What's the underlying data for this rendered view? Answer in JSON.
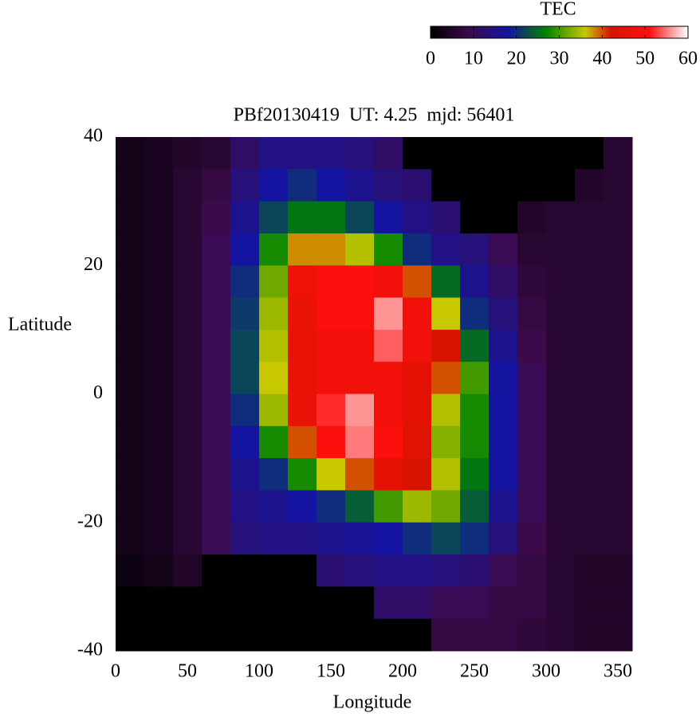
{
  "chart_data": {
    "type": "heatmap",
    "title": "PBf20130419  UT: 4.25  mjd: 56401",
    "xlabel": "Longitude",
    "ylabel": "Latitude",
    "colorbar_label": "TEC",
    "x": [
      10,
      30,
      50,
      70,
      90,
      110,
      130,
      150,
      170,
      190,
      210,
      230,
      250,
      270,
      290,
      310,
      330,
      350
    ],
    "y": [
      37.5,
      32.5,
      27.5,
      22.5,
      17.5,
      12.5,
      7.5,
      2.5,
      -2.5,
      -7.5,
      -12.5,
      -17.5,
      -22.5,
      -27.5,
      -32.5,
      -37.5
    ],
    "z": [
      [
        3,
        4,
        5,
        6,
        12,
        15,
        15,
        15,
        14,
        12,
        0,
        0,
        0,
        0,
        0,
        0,
        0,
        6
      ],
      [
        3,
        4,
        6,
        8,
        14,
        18,
        20,
        18,
        16,
        14,
        13,
        0,
        0,
        0,
        0,
        0,
        5,
        6
      ],
      [
        3,
        4,
        6,
        9,
        16,
        22,
        26,
        26,
        22,
        18,
        15,
        13,
        0,
        0,
        5,
        6,
        6,
        6
      ],
      [
        3,
        4,
        6,
        10,
        18,
        28,
        38,
        38,
        35,
        28,
        20,
        15,
        14,
        10,
        6,
        6,
        6,
        6
      ],
      [
        3,
        4,
        6,
        10,
        20,
        32,
        47,
        50,
        50,
        48,
        40,
        25,
        16,
        12,
        7,
        6,
        6,
        6
      ],
      [
        3,
        4,
        6,
        10,
        21,
        34,
        46,
        50,
        50,
        56,
        48,
        36,
        20,
        14,
        8,
        6,
        6,
        6
      ],
      [
        3,
        4,
        6,
        10,
        22,
        35,
        46,
        48,
        48,
        54,
        48,
        42,
        25,
        16,
        9,
        6,
        6,
        6
      ],
      [
        3,
        4,
        6,
        10,
        22,
        36,
        46,
        48,
        48,
        48,
        45,
        40,
        30,
        18,
        10,
        6,
        6,
        6
      ],
      [
        3,
        4,
        6,
        10,
        20,
        34,
        46,
        52,
        56,
        48,
        45,
        35,
        28,
        18,
        10,
        6,
        6,
        6
      ],
      [
        3,
        4,
        6,
        10,
        18,
        28,
        40,
        50,
        55,
        50,
        44,
        33,
        28,
        18,
        10,
        6,
        6,
        6
      ],
      [
        3,
        4,
        6,
        10,
        16,
        20,
        28,
        36,
        40,
        45,
        42,
        35,
        26,
        18,
        10,
        6,
        6,
        6
      ],
      [
        3,
        4,
        6,
        10,
        15,
        16,
        18,
        20,
        24,
        30,
        34,
        32,
        24,
        16,
        10,
        6,
        6,
        6
      ],
      [
        3,
        4,
        6,
        10,
        14,
        15,
        15,
        16,
        17,
        18,
        20,
        22,
        20,
        14,
        9,
        6,
        6,
        6
      ],
      [
        2,
        3,
        5,
        0,
        0,
        0,
        0,
        13,
        14,
        15,
        15,
        14,
        13,
        10,
        8,
        6,
        5,
        5
      ],
      [
        0,
        0,
        0,
        0,
        0,
        0,
        0,
        0,
        0,
        12,
        12,
        10,
        10,
        8,
        8,
        6,
        5,
        5
      ],
      [
        0,
        0,
        0,
        0,
        0,
        0,
        0,
        0,
        0,
        0,
        0,
        8,
        8,
        8,
        7,
        6,
        5,
        5
      ]
    ],
    "xlim": [
      0,
      360
    ],
    "xticks": [
      0,
      50,
      100,
      150,
      200,
      250,
      300,
      350
    ],
    "ylim": [
      -40,
      40
    ],
    "yticks": [
      -40,
      -20,
      0,
      20,
      40
    ],
    "zlim": [
      0,
      60
    ],
    "zticks": [
      0,
      10,
      20,
      30,
      40,
      50,
      60
    ]
  }
}
